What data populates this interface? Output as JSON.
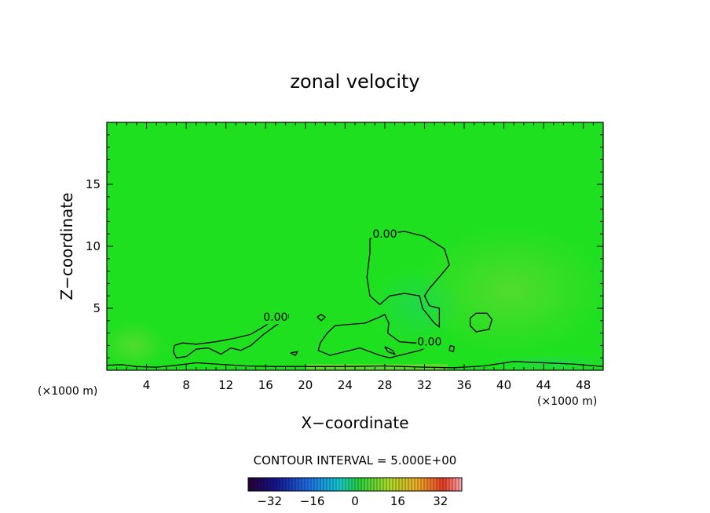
{
  "chart_data": {
    "type": "contour",
    "title": "zonal velocity",
    "xlabel": "X−coordinate",
    "ylabel": "Z−coordinate",
    "x_unit_label": "(×1000 m)",
    "x_unit_label_right": "(×1000 m)",
    "xlim": [
      0,
      50
    ],
    "ylim": [
      0,
      20
    ],
    "xticks": [
      4,
      8,
      12,
      16,
      20,
      24,
      28,
      32,
      36,
      40,
      44,
      48
    ],
    "yticks": [
      5,
      10,
      15
    ],
    "contour_interval_text": "CONTOUR INTERVAL = 5.000E+00",
    "contour_levels": [
      "0.00"
    ],
    "colorbar": {
      "ticks": [
        -32,
        -16,
        0,
        16,
        32
      ],
      "tick_labels": [
        "−32",
        "−16",
        "0",
        "16",
        "32"
      ],
      "range": [
        -40,
        40
      ],
      "colormap": "rainbow"
    },
    "colors": {
      "field_background": "#1fe01f",
      "contour_line": "#000000"
    },
    "contours": [
      {
        "label": "0.00",
        "points": [
          [
            26.5,
            10.6
          ],
          [
            28,
            11
          ],
          [
            30,
            11.2
          ],
          [
            32,
            10.8
          ],
          [
            34,
            9.8
          ],
          [
            34.5,
            8.5
          ],
          [
            34,
            8
          ],
          [
            32.5,
            6.6
          ],
          [
            32,
            6
          ],
          [
            32.5,
            5.2
          ],
          [
            33.5,
            5
          ],
          [
            33.5,
            4
          ],
          [
            33.5,
            3.5
          ],
          [
            33,
            3.8
          ],
          [
            31.8,
            5
          ],
          [
            31.5,
            6
          ],
          [
            30,
            6.2
          ],
          [
            28.5,
            6
          ],
          [
            27.5,
            5.3
          ],
          [
            26.5,
            6
          ],
          [
            26.2,
            7.5
          ],
          [
            26.5,
            9.5
          ],
          [
            26.5,
            10.6
          ]
        ]
      },
      {
        "label": "0.00",
        "points": [
          [
            6.8,
            2
          ],
          [
            7.6,
            2.2
          ],
          [
            9,
            2.1
          ],
          [
            11,
            2.3
          ],
          [
            13,
            2.6
          ],
          [
            14.5,
            2.9
          ],
          [
            16,
            3.6
          ],
          [
            17,
            4.3
          ],
          [
            18.3,
            4.5
          ],
          [
            18.3,
            4.2
          ],
          [
            17,
            3.6
          ],
          [
            15.8,
            2.9
          ],
          [
            14.5,
            2
          ],
          [
            13.5,
            1.6
          ],
          [
            12.5,
            1.8
          ],
          [
            11.5,
            1.3
          ],
          [
            10.2,
            1.8
          ],
          [
            9,
            1.7
          ],
          [
            8,
            1.1
          ],
          [
            7,
            1
          ],
          [
            6.7,
            1.5
          ],
          [
            6.8,
            2
          ]
        ]
      },
      {
        "label": "0.00",
        "points": [
          [
            21.5,
            2.2
          ],
          [
            22.2,
            3
          ],
          [
            23,
            3.6
          ],
          [
            24.5,
            3.7
          ],
          [
            26,
            3.8
          ],
          [
            27.5,
            4.3
          ],
          [
            28,
            4.5
          ],
          [
            28.4,
            3.8
          ],
          [
            28.3,
            3
          ],
          [
            29.5,
            2.3
          ],
          [
            31,
            2.2
          ],
          [
            32.5,
            2.3
          ],
          [
            33,
            2.1
          ],
          [
            31.5,
            1.6
          ],
          [
            30,
            1.3
          ],
          [
            28.5,
            1
          ],
          [
            27.5,
            1.2
          ],
          [
            26.5,
            1.5
          ],
          [
            25.5,
            1.8
          ],
          [
            24,
            1.5
          ],
          [
            22.5,
            1.2
          ],
          [
            21.3,
            1.6
          ],
          [
            21.5,
            2.2
          ]
        ]
      },
      {
        "label": "",
        "points": [
          [
            36.6,
            4.2
          ],
          [
            37.2,
            4.6
          ],
          [
            38.3,
            4.6
          ],
          [
            38.8,
            4.1
          ],
          [
            38.5,
            3.3
          ],
          [
            37.2,
            3.1
          ],
          [
            36.6,
            3.6
          ],
          [
            36.6,
            4.2
          ]
        ]
      },
      {
        "label": "",
        "points": [
          [
            21.2,
            4.3
          ],
          [
            21.6,
            4.5
          ],
          [
            22,
            4.3
          ],
          [
            21.6,
            4
          ],
          [
            21.2,
            4.3
          ]
        ]
      },
      {
        "label": "",
        "points": [
          [
            28,
            1.9
          ],
          [
            28.8,
            1.6
          ],
          [
            29,
            1.3
          ],
          [
            28.3,
            1.5
          ],
          [
            28,
            1.9
          ]
        ]
      },
      {
        "label": "",
        "points": [
          [
            34.6,
            2
          ],
          [
            35,
            1.9
          ],
          [
            34.9,
            1.5
          ],
          [
            34.5,
            1.6
          ],
          [
            34.6,
            2
          ]
        ]
      },
      {
        "label": "",
        "points": [
          [
            18.5,
            1.4
          ],
          [
            19.2,
            1.5
          ],
          [
            19,
            1.2
          ],
          [
            18.5,
            1.4
          ]
        ]
      },
      {
        "label": "",
        "points": [
          [
            0,
            0.4
          ],
          [
            1.5,
            0.45
          ],
          [
            3,
            0.3
          ],
          [
            5,
            0.25
          ],
          [
            7,
            0.4
          ],
          [
            9,
            0.6
          ],
          [
            11,
            0.5
          ],
          [
            14,
            0.35
          ],
          [
            17,
            0.3
          ],
          [
            20,
            0.3
          ],
          [
            24,
            0.3
          ],
          [
            28,
            0.35
          ],
          [
            32,
            0.25
          ],
          [
            35,
            0.2
          ],
          [
            38,
            0.35
          ],
          [
            41,
            0.7
          ],
          [
            44,
            0.6
          ],
          [
            47,
            0.5
          ],
          [
            50,
            0.3
          ]
        ]
      }
    ]
  }
}
